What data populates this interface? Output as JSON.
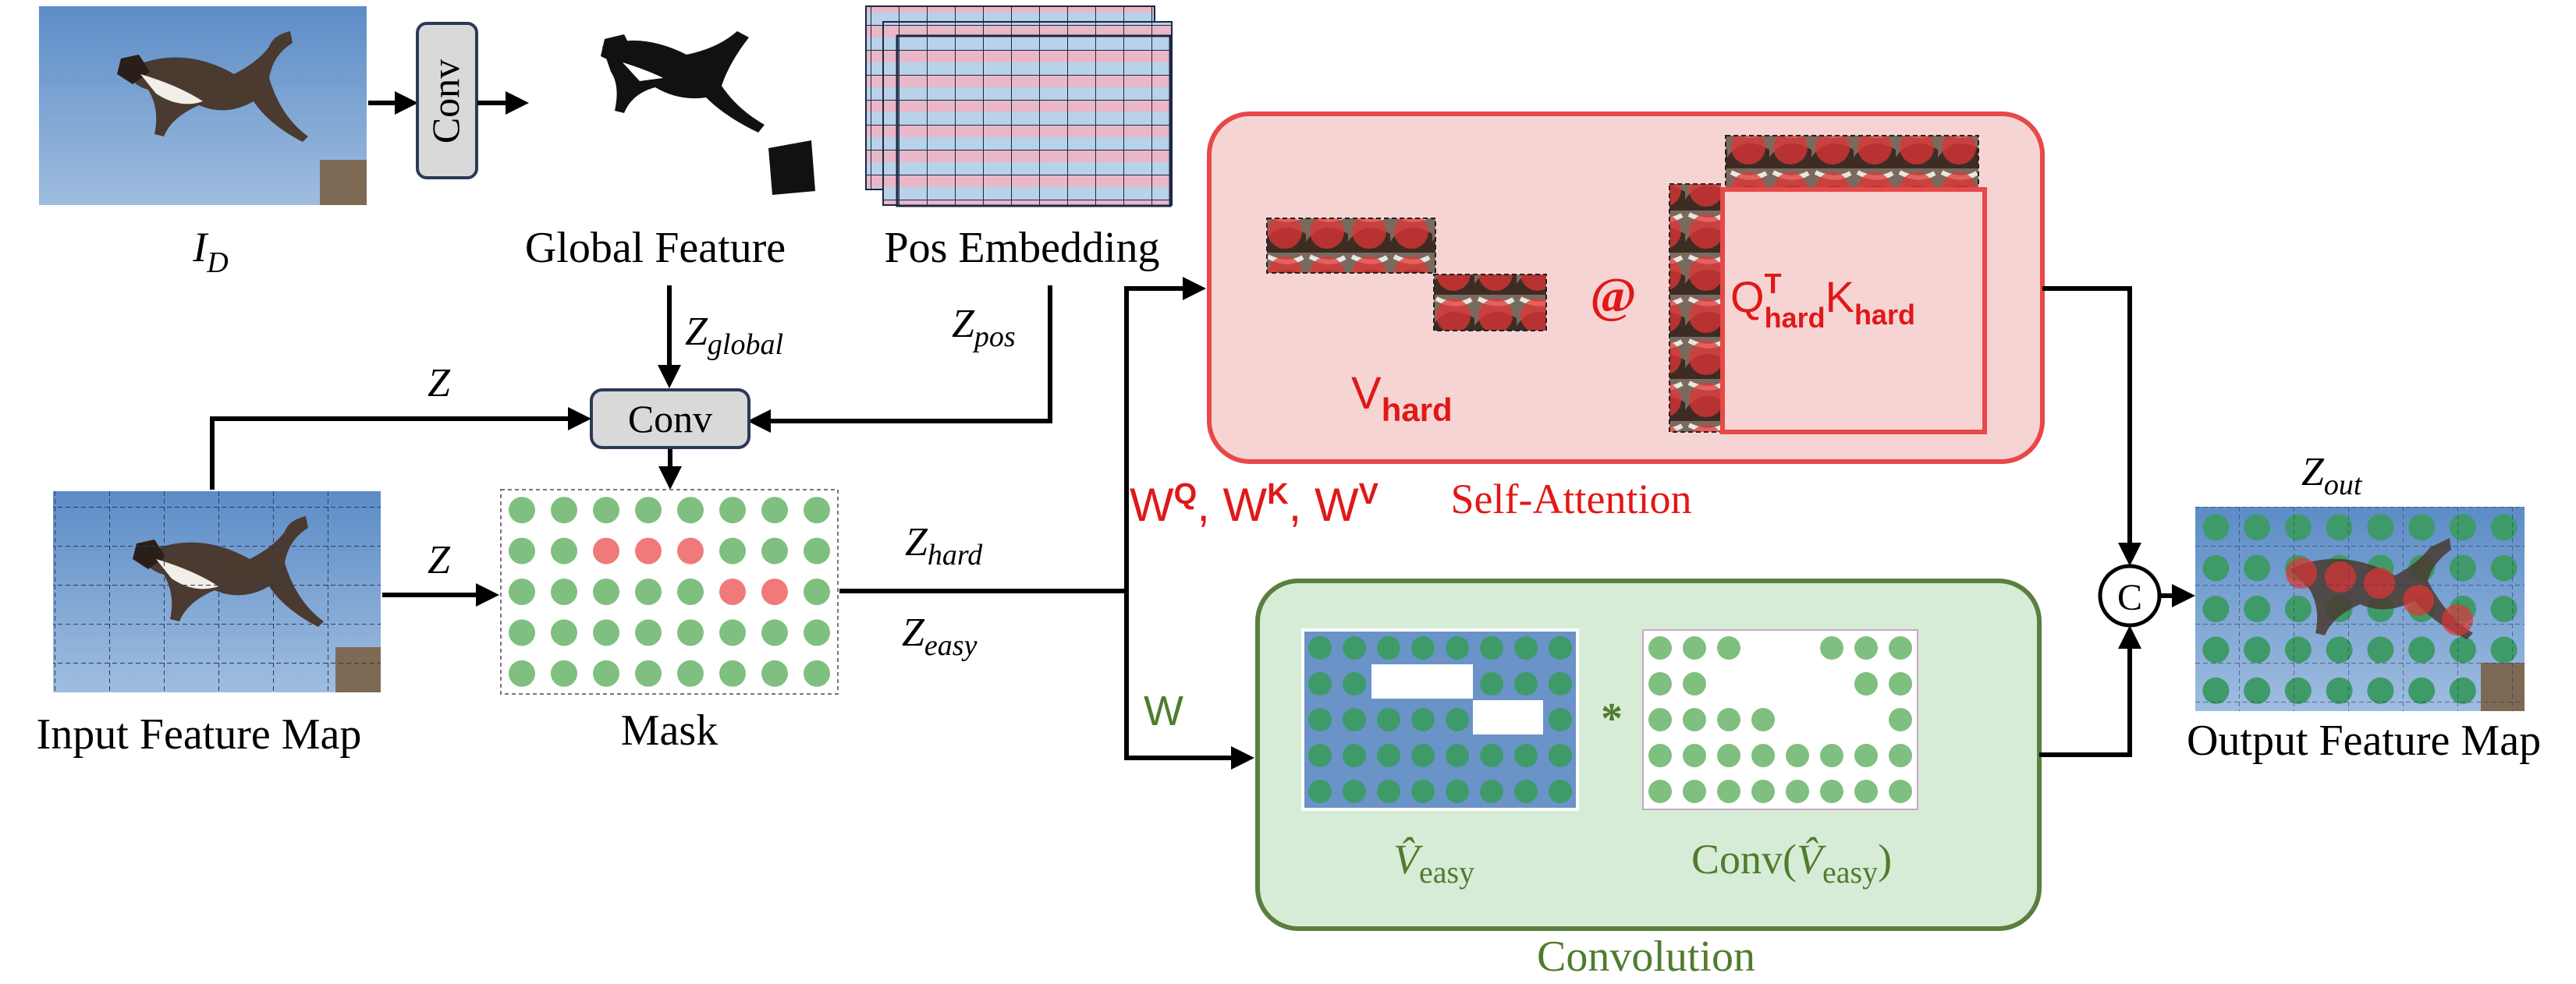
{
  "colors": {
    "sky": "#6a93c8",
    "mask_green": "#7fbf7f",
    "mask_red": "#f07a7a",
    "attention_fill": "#f7d4d4",
    "attention_stroke": "#e84848",
    "attention_text": "#e01818",
    "conv_fill": "#d7ecd7",
    "conv_stroke": "#5a7f3e",
    "conv_text": "#4f7c2e",
    "node_fill": "#d9d9d9"
  },
  "icons": {
    "cat_image": "jumping-cat-photo",
    "concat": "circled-c-icon"
  },
  "labels": {
    "input_image": "I",
    "input_image_sub": "D",
    "conv_top": "Conv",
    "global_feature": "Global Feature",
    "pos_embedding": "Pos Embedding",
    "z_global": "Z",
    "z_global_sub": "global",
    "z_pos": "Z",
    "z_pos_sub": "pos",
    "z_top": "Z",
    "z_left": "Z",
    "conv_mid": "Conv",
    "input_feature_map": "Input Feature Map",
    "mask": "Mask",
    "z_hard": "Z",
    "z_hard_sub": "hard",
    "z_easy": "Z",
    "z_easy_sub": "easy",
    "v_hard": "V",
    "v_hard_sub": "hard",
    "at_symbol": "@",
    "qk_q": "Q",
    "qk_q_sup": "T",
    "qk_q_sub": "hard",
    "qk_k": "K",
    "qk_k_sub": "hard",
    "wq": "W",
    "wq_sup": "Q",
    "wk": "W",
    "wk_sup": "K",
    "wv": "W",
    "wv_sup": "V",
    "comma": ", ",
    "self_attention": "Self-Attention",
    "w_easy": "W",
    "v_easy": "V̂",
    "v_easy_sub": "easy",
    "star_symbol": "*",
    "conv_v_prefix": "Conv(",
    "conv_v_v": "V̂",
    "conv_v_sub": "easy",
    "conv_v_suffix": ")",
    "convolution": "Convolution",
    "concat_symbol": "C",
    "z_out": "Z",
    "z_out_sub": "out",
    "output_feature_map": "Output Feature Map"
  },
  "mask_grid": {
    "rows": 5,
    "cols": 8,
    "hard_cells": [
      [
        1,
        2
      ],
      [
        1,
        3
      ],
      [
        1,
        4
      ],
      [
        2,
        5
      ],
      [
        2,
        6
      ]
    ]
  }
}
